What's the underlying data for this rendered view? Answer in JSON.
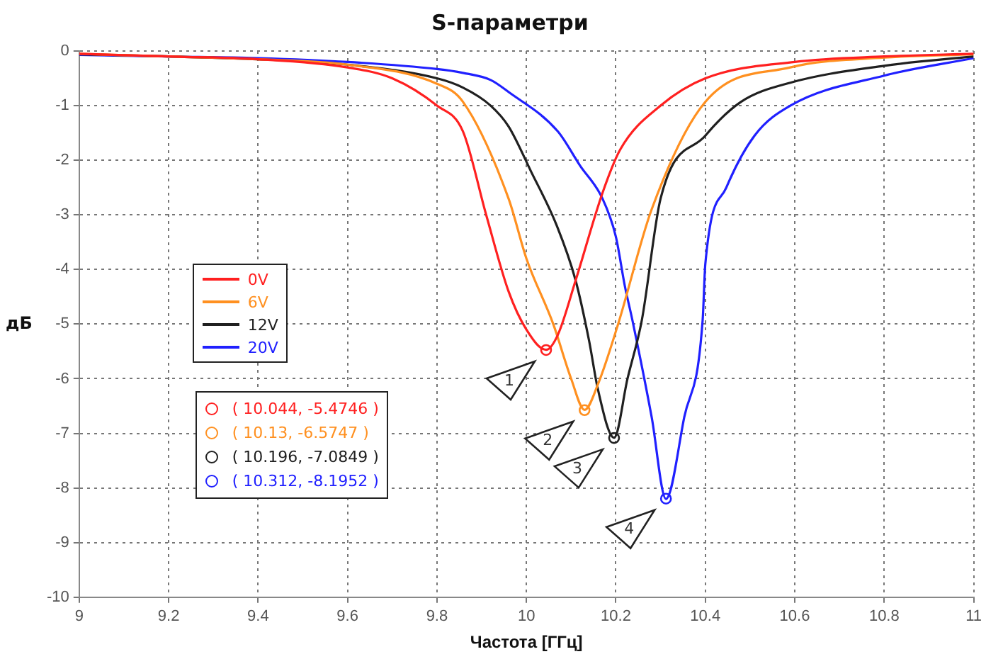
{
  "chart_data": {
    "type": "line",
    "title": "S-параметри",
    "xlabel": "Частота [ГГц]",
    "ylabel": "дБ",
    "xlim": [
      9,
      11
    ],
    "xticks": [
      9,
      9.2,
      9.4,
      9.6,
      9.8,
      10,
      10.2,
      10.4,
      10.6,
      10.8,
      11
    ],
    "ylim": [
      -10,
      0
    ],
    "yticks": [
      0,
      -1,
      -2,
      -3,
      -4,
      -5,
      -6,
      -7,
      -8,
      -9,
      -10
    ],
    "grid": true,
    "legend": "left",
    "marker": "none",
    "line_style": "solid",
    "series": [
      {
        "name": "0V",
        "color": "#ff2020",
        "x": [
          9,
          9.2,
          9.4,
          9.6,
          9.7,
          9.8,
          9.858,
          9.91,
          9.96,
          10,
          10.044,
          10.07,
          10.11,
          10.17,
          10.21,
          10.3,
          10.4,
          10.6,
          10.8,
          11
        ],
        "values": [
          -0.05,
          -0.1,
          -0.15,
          -0.3,
          -0.5,
          -1.0,
          -1.47,
          -3.0,
          -4.4,
          -5.1,
          -5.47,
          -5.2,
          -4.2,
          -2.6,
          -1.8,
          -1.0,
          -0.5,
          -0.2,
          -0.1,
          -0.05
        ]
      },
      {
        "name": "6V",
        "color": "#ff9020",
        "x": [
          9,
          9.2,
          9.4,
          9.6,
          9.8,
          9.858,
          9.96,
          10,
          10.06,
          10.1,
          10.13,
          10.16,
          10.205,
          10.28,
          10.4,
          10.59,
          10.8,
          11
        ],
        "values": [
          -0.05,
          -0.1,
          -0.15,
          -0.25,
          -0.6,
          -0.93,
          -2.7,
          -3.8,
          -5.0,
          -6.0,
          -6.57,
          -6.1,
          -5.0,
          -2.9,
          -0.93,
          -0.3,
          -0.12,
          -0.06
        ]
      },
      {
        "name": "12V",
        "color": "#202020",
        "x": [
          9,
          9.2,
          9.4,
          9.6,
          9.8,
          9.858,
          9.92,
          9.96,
          10.01,
          10.068,
          10.11,
          10.14,
          10.16,
          10.196,
          10.226,
          10.258,
          10.3,
          10.4,
          10.48,
          10.59,
          10.8,
          11
        ],
        "values": [
          -0.06,
          -0.1,
          -0.15,
          -0.25,
          -0.5,
          -0.67,
          -1.0,
          -1.38,
          -2.2,
          -3.2,
          -4.2,
          -5.3,
          -6.2,
          -7.08,
          -6.0,
          -4.93,
          -2.7,
          -1.55,
          -0.93,
          -0.58,
          -0.27,
          -0.1
        ]
      },
      {
        "name": "20V",
        "color": "#2020ff",
        "x": [
          9,
          9.2,
          9.4,
          9.6,
          9.8,
          9.858,
          9.92,
          9.96,
          10.07,
          10.12,
          10.17,
          10.2,
          10.22,
          10.237,
          10.28,
          10.312,
          10.353,
          10.394,
          10.4,
          10.447,
          10.51,
          10.59,
          10.8,
          11
        ],
        "values": [
          -0.07,
          -0.1,
          -0.13,
          -0.2,
          -0.33,
          -0.4,
          -0.53,
          -0.75,
          -1.47,
          -2.1,
          -2.7,
          -3.4,
          -4.3,
          -4.93,
          -6.7,
          -8.2,
          -6.7,
          -4.93,
          -3.9,
          -2.5,
          -1.55,
          -1.0,
          -0.45,
          -0.13
        ]
      }
    ],
    "annotations": [
      {
        "text": "1",
        "x": 10.044,
        "y": -5.4746
      },
      {
        "text": "2",
        "x": 10.13,
        "y": -6.5747
      },
      {
        "text": "3",
        "x": 10.196,
        "y": -7.0849
      },
      {
        "text": "4",
        "x": 10.312,
        "y": -8.1952
      },
      "( 10.044, -5.4746 )",
      "( 10.13, -6.5747 )",
      "( 10.196, -7.0849 )",
      "( 10.312, -8.1952 )"
    ]
  }
}
